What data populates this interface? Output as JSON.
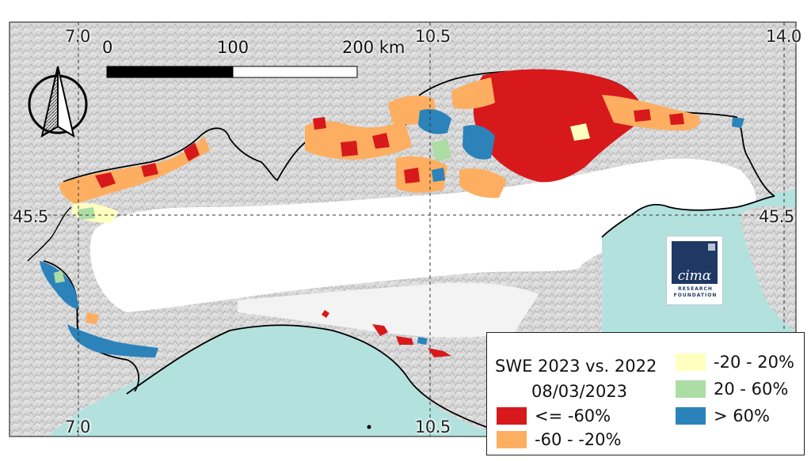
{
  "map": {
    "title": "SWE 2023 vs. 2022",
    "date": "08/03/2023",
    "lon_labels": [
      "7.0",
      "10.5",
      "14.0"
    ],
    "lat_labels": [
      "45.5"
    ],
    "scale_bar": {
      "labels": [
        "0",
        "100",
        "200 km"
      ]
    },
    "legend": [
      {
        "label": "<= -60%",
        "color": "#d7191c"
      },
      {
        "label": "-60 - -20%",
        "color": "#fdae61"
      },
      {
        "label": "-20 - 20%",
        "color": "#ffffbf"
      },
      {
        "label": "20 - 60%",
        "color": "#abdda4"
      },
      {
        "label": "> 60%",
        "color": "#2b83ba"
      }
    ],
    "colors": {
      "sea": "#b3e2de",
      "relief": "#d9d9d9",
      "plain": "#ffffff",
      "border": "#000000"
    },
    "logo": {
      "word": "cimα",
      "line1": "RESEARCH",
      "line2": "FOUNDATION"
    },
    "icons": [
      "north-arrow-icon",
      "cima-logo"
    ]
  }
}
